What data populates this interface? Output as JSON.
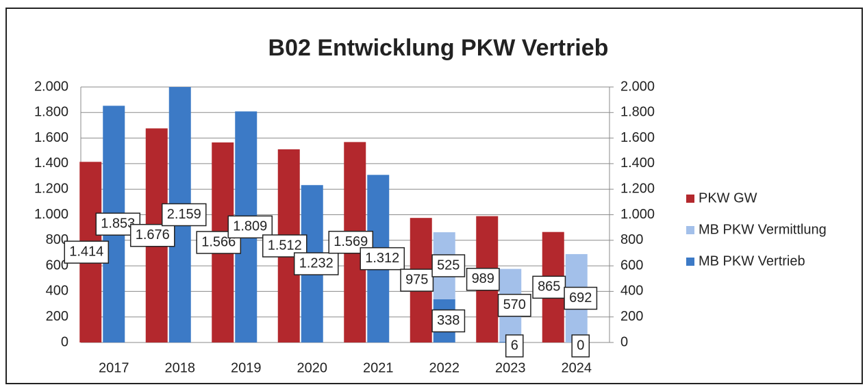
{
  "chart_data": {
    "type": "bar",
    "title": "B02 Entwicklung PKW Vertrieb",
    "categories": [
      "2017",
      "2018",
      "2019",
      "2020",
      "2021",
      "2022",
      "2023",
      "2024"
    ],
    "series": [
      {
        "name": "PKW GW",
        "color": "#b3282d",
        "values": [
          1414,
          1676,
          1566,
          1512,
          1569,
          975,
          989,
          865
        ],
        "value_labels": [
          "1.414",
          "1.676",
          "1.566",
          "1.512",
          "1.569",
          "975",
          "989",
          "865"
        ]
      },
      {
        "name": "MB PKW Vermittlung",
        "color": "#a3c0ea",
        "values": [
          null,
          null,
          null,
          null,
          null,
          525,
          570,
          692
        ],
        "value_labels": [
          null,
          null,
          null,
          null,
          null,
          "525",
          "570",
          "692"
        ]
      },
      {
        "name": "MB PKW Vertrieb",
        "color": "#3c7ac6",
        "values": [
          1853,
          2159,
          1809,
          1232,
          1312,
          338,
          6,
          0
        ],
        "value_labels": [
          "1.853",
          "2.159",
          "1.809",
          "1.232",
          "1.312",
          "338",
          "6",
          "0"
        ]
      }
    ],
    "ylim": [
      0,
      2000
    ],
    "yticks": [
      0,
      200,
      400,
      600,
      800,
      {
        "value": 1000,
        "label": "1.000"
      },
      {
        "value": 1200,
        "label": "1.200"
      },
      {
        "value": 1400,
        "label": "1.400"
      },
      {
        "value": 1600,
        "label": "1.600"
      },
      {
        "value": 1800,
        "label": "1.800"
      },
      {
        "value": 2000,
        "label": "2.000"
      }
    ],
    "y2lim": [
      0,
      2000
    ],
    "y2ticks": [
      0,
      200,
      400,
      600,
      800,
      {
        "value": 1000,
        "label": "1.000"
      },
      {
        "value": 1200,
        "label": "1.200"
      },
      {
        "value": 1400,
        "label": "1.400"
      },
      {
        "value": 1600,
        "label": "1.600"
      },
      {
        "value": 1800,
        "label": "1.800"
      },
      {
        "value": 2000,
        "label": "2.000"
      }
    ],
    "grid": true,
    "legend": "right"
  }
}
